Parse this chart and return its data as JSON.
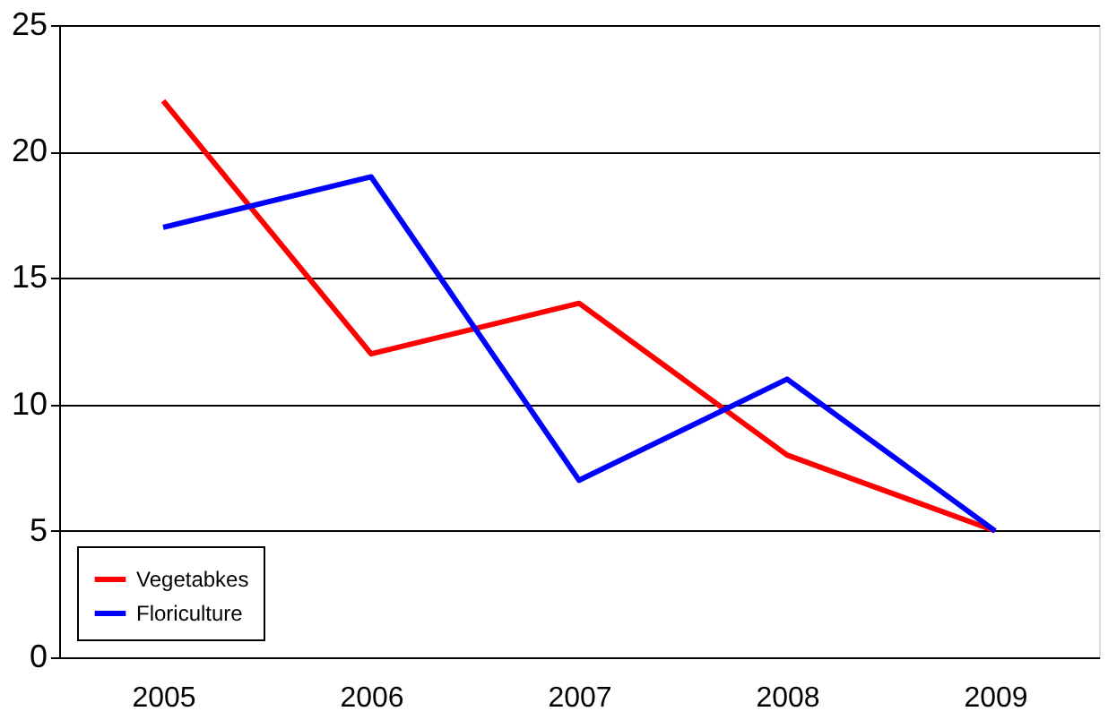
{
  "chart_data": {
    "type": "line",
    "categories": [
      "2005",
      "2006",
      "2007",
      "2008",
      "2009"
    ],
    "series": [
      {
        "name": "Vegetabkes",
        "color": "#ff0000",
        "values": [
          22,
          12,
          14,
          8,
          5
        ]
      },
      {
        "name": "Floriculture",
        "color": "#0000ff",
        "values": [
          17,
          19,
          7,
          11,
          5
        ]
      }
    ],
    "ylim": [
      0,
      25
    ],
    "yticks": [
      0,
      5,
      10,
      15,
      20,
      25
    ],
    "grid": "y",
    "legend": "bottom left",
    "marker": "none",
    "line_style": "solid"
  }
}
